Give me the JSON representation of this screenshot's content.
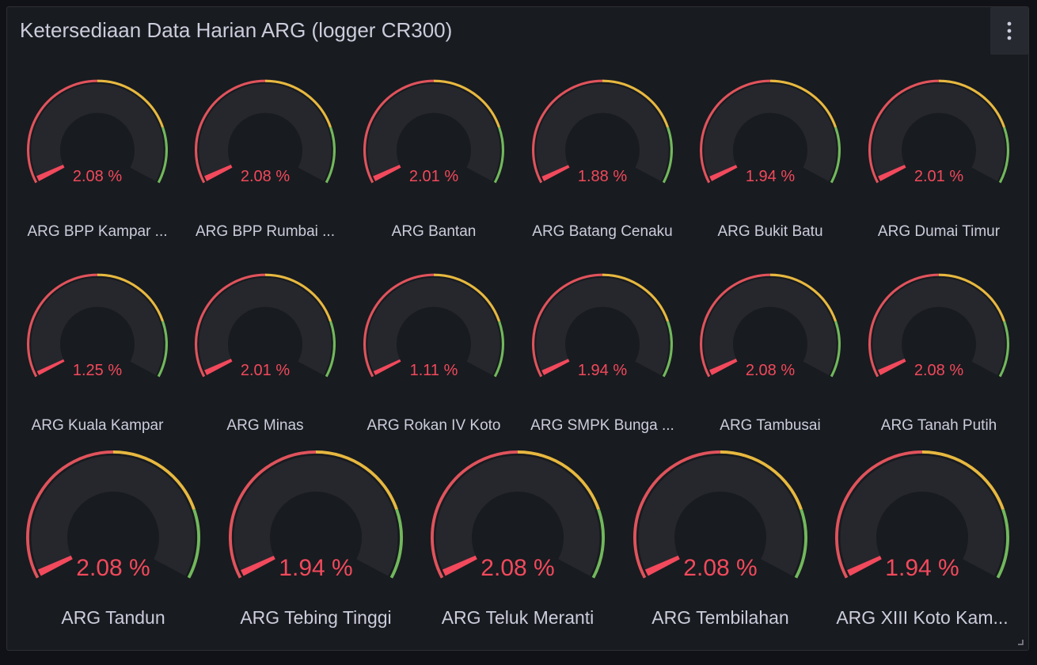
{
  "panel": {
    "title": "Ketersediaan Data Harian ARG (logger CR300)",
    "menu_icon": "kebab-vertical-icon",
    "resize_icon": "resize-corner-icon"
  },
  "colors": {
    "background": "#111217",
    "panel_background": "#181b1f",
    "gauge_track": "#26272d",
    "threshold_red": "#e0535c",
    "threshold_yellow": "#e7b840",
    "threshold_green": "#72b85c",
    "value_text": "#f2495c",
    "label_text": "#ccccdc"
  },
  "gauge_settings": {
    "min": 0,
    "max": 100,
    "unit": "%",
    "thresholds": [
      {
        "color": "red",
        "from": 0,
        "to": 50
      },
      {
        "color": "yellow",
        "from": 50,
        "to": 80
      },
      {
        "color": "green",
        "from": 80,
        "to": 100
      }
    ]
  },
  "gauges": [
    {
      "label": "ARG BPP Kampar ...",
      "value": "2.08 %",
      "value_num": 2.08
    },
    {
      "label": "ARG BPP Rumbai ...",
      "value": "2.08 %",
      "value_num": 2.08
    },
    {
      "label": "ARG Bantan",
      "value": "2.01 %",
      "value_num": 2.01
    },
    {
      "label": "ARG Batang Cenaku",
      "value": "1.88 %",
      "value_num": 1.88
    },
    {
      "label": "ARG Bukit Batu",
      "value": "1.94 %",
      "value_num": 1.94
    },
    {
      "label": "ARG Dumai Timur",
      "value": "2.01 %",
      "value_num": 2.01
    },
    {
      "label": "ARG Kuala Kampar",
      "value": "1.25 %",
      "value_num": 1.25
    },
    {
      "label": "ARG Minas",
      "value": "2.01 %",
      "value_num": 2.01
    },
    {
      "label": "ARG Rokan IV Koto",
      "value": "1.11 %",
      "value_num": 1.11
    },
    {
      "label": "ARG SMPK Bunga ...",
      "value": "1.94 %",
      "value_num": 1.94
    },
    {
      "label": "ARG Tambusai",
      "value": "2.08 %",
      "value_num": 2.08
    },
    {
      "label": "ARG Tanah Putih",
      "value": "2.08 %",
      "value_num": 2.08
    },
    {
      "label": "ARG Tandun",
      "value": "2.08 %",
      "value_num": 2.08
    },
    {
      "label": "ARG Tebing Tinggi",
      "value": "1.94 %",
      "value_num": 1.94
    },
    {
      "label": "ARG Teluk Meranti",
      "value": "2.08 %",
      "value_num": 2.08
    },
    {
      "label": "ARG Tembilahan",
      "value": "2.08 %",
      "value_num": 2.08
    },
    {
      "label": "ARG XIII Koto Kam...",
      "value": "1.94 %",
      "value_num": 1.94
    }
  ]
}
